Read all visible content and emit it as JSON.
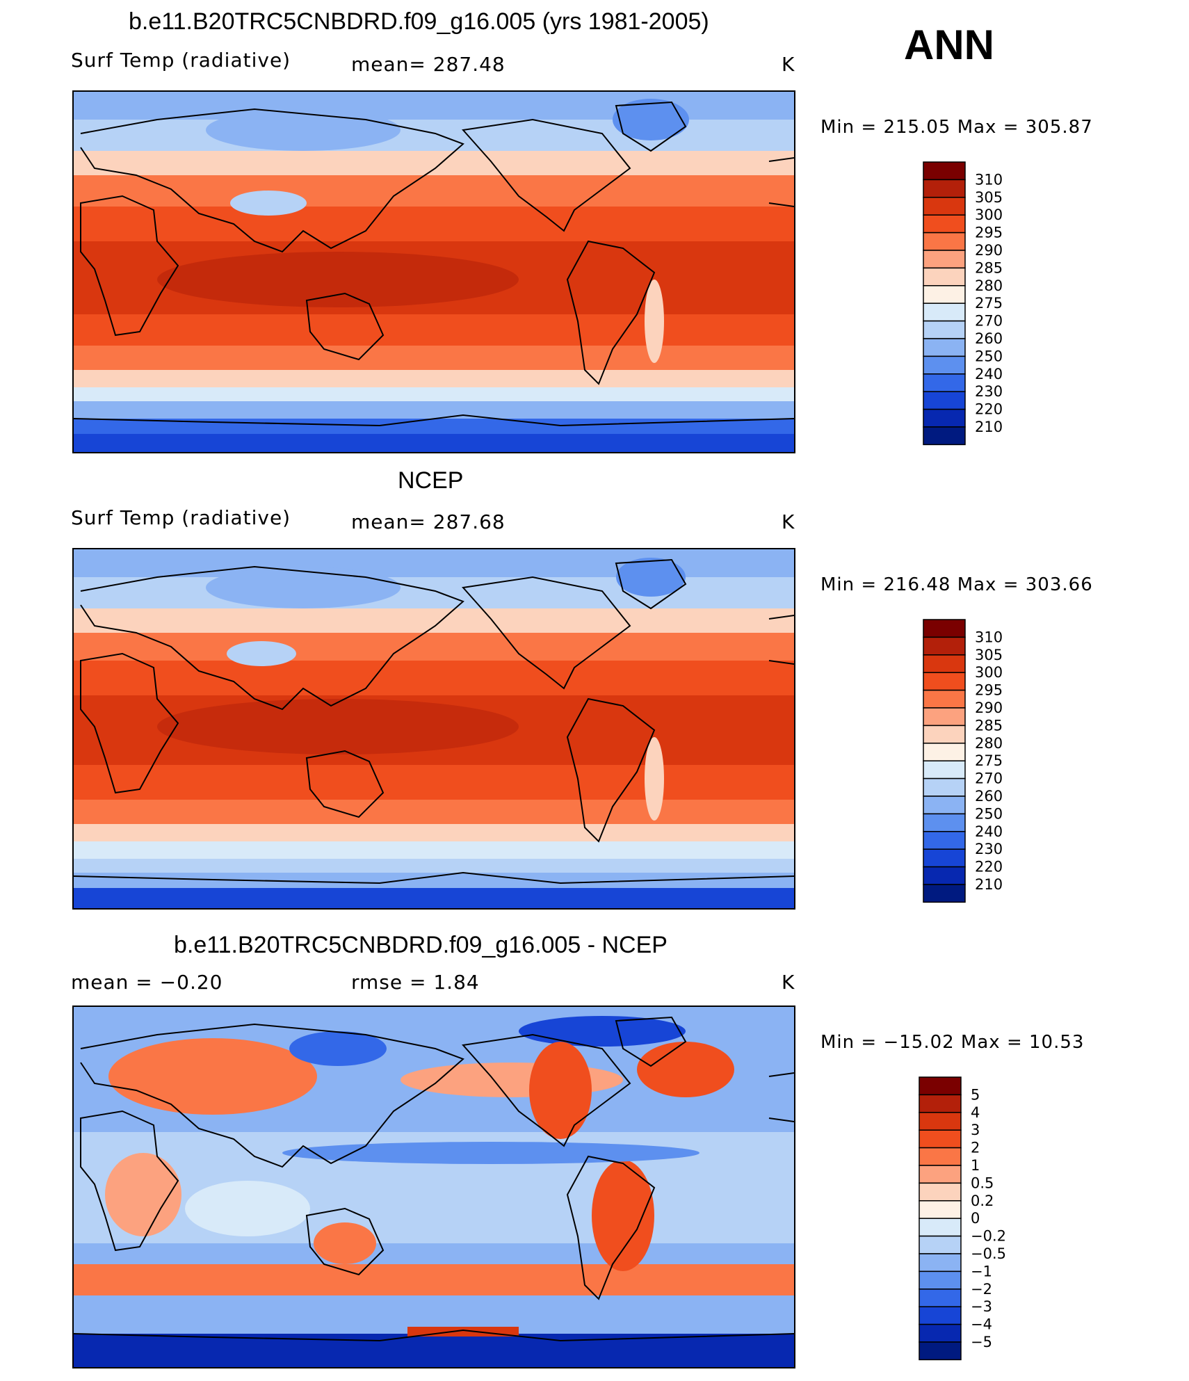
{
  "figure": {
    "season": "ANN"
  },
  "chart_data": [
    {
      "type": "heatmap",
      "panel": "model",
      "title": "b.e11.B20TRC5CNBDRD.f09_g16.005 (yrs 1981-2005)",
      "left_label": "Surf Temp (radiative)",
      "mean_text": "mean= 287.48",
      "units": "K",
      "min_max_text": "Min = 215.05 Max = 305.87",
      "min": 215.05,
      "max": 305.87,
      "levels": [
        "310",
        "305",
        "300",
        "295",
        "290",
        "285",
        "280",
        "275",
        "270",
        "260",
        "250",
        "240",
        "230",
        "220",
        "210"
      ],
      "colors": [
        "#7a0000",
        "#b3200a",
        "#d9370f",
        "#f04e1e",
        "#fa7646",
        "#fca27f",
        "#fcd3bd",
        "#fdf1e5",
        "#d8eaf9",
        "#b6d2f6",
        "#8bb3f3",
        "#5d90ef",
        "#3368e8",
        "#1745d6",
        "#0728b0",
        "#001a80"
      ]
    },
    {
      "type": "heatmap",
      "panel": "obs",
      "title": "NCEP",
      "left_label": "Surf Temp (radiative)",
      "mean_text": "mean= 287.68",
      "units": "K",
      "min_max_text": "Min = 216.48 Max = 303.66",
      "min": 216.48,
      "max": 303.66,
      "levels": [
        "310",
        "305",
        "300",
        "295",
        "290",
        "285",
        "280",
        "275",
        "270",
        "260",
        "250",
        "240",
        "230",
        "220",
        "210"
      ],
      "colors": [
        "#7a0000",
        "#b3200a",
        "#d9370f",
        "#f04e1e",
        "#fa7646",
        "#fca27f",
        "#fcd3bd",
        "#fdf1e5",
        "#d8eaf9",
        "#b6d2f6",
        "#8bb3f3",
        "#5d90ef",
        "#3368e8",
        "#1745d6",
        "#0728b0",
        "#001a80"
      ]
    },
    {
      "type": "heatmap",
      "panel": "diff",
      "title": "b.e11.B20TRC5CNBDRD.f09_g16.005 - NCEP",
      "left_label": "mean =   −0.20",
      "mean_text": "rmse =    1.84",
      "units": "K",
      "min_max_text": "Min = −15.02 Max =  10.53",
      "min": -15.02,
      "max": 10.53,
      "levels": [
        "5",
        "4",
        "3",
        "2",
        "1",
        "0.5",
        "0.2",
        "0",
        "−0.2",
        "−0.5",
        "−1",
        "−2",
        "−3",
        "−4",
        "−5"
      ],
      "colors": [
        "#7a0000",
        "#b3200a",
        "#d9370f",
        "#f04e1e",
        "#fa7646",
        "#fca27f",
        "#fcd3bd",
        "#fdf1e5",
        "#d8eaf9",
        "#b6d2f6",
        "#8bb3f3",
        "#5d90ef",
        "#3368e8",
        "#1745d6",
        "#0728b0",
        "#001a80"
      ]
    }
  ]
}
